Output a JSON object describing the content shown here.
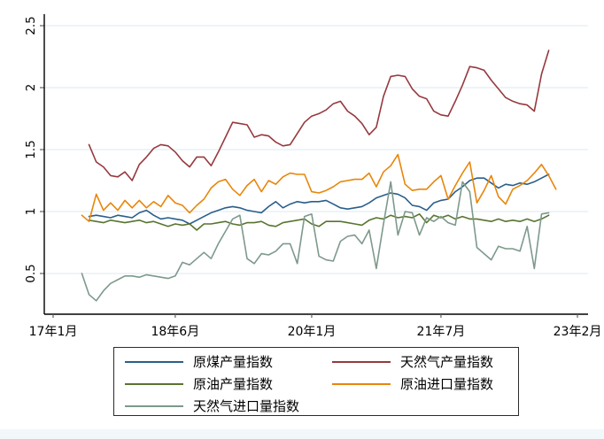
{
  "figure": {
    "title": "",
    "background": "#ffffff"
  },
  "colors": {
    "axis": "#000000",
    "tick": "#606060",
    "gridline": "#e4eef4",
    "text": "#000000",
    "legend_border": "#2b2b2b",
    "bottom_strip": "#f2f7fa"
  },
  "chart_data": {
    "type": "line",
    "title": "",
    "xlabel": "",
    "ylabel": "",
    "grid": "horizontal",
    "legend_position": "bottom",
    "x_axis": {
      "unit": "month",
      "tick_labels": [
        "17年1月",
        "18年6月",
        "20年1月",
        "21年7月",
        "23年2月"
      ],
      "tick_months": [
        0,
        17,
        36,
        54,
        73
      ],
      "total_months": 73
    },
    "y_axis": {
      "tick_values": [
        0.5,
        1,
        1.5,
        2,
        2.5
      ],
      "tick_labels": [
        "0.5",
        "1",
        "1.5",
        "2",
        "2.5"
      ],
      "range": [
        0.25,
        2.62
      ]
    },
    "series": [
      {
        "name": "原煤产量指数",
        "key": "raw-coal-production-index",
        "color": "#2a5e8b",
        "start_month": 5,
        "values": [
          0.96,
          0.97,
          0.96,
          0.95,
          0.97,
          0.96,
          0.95,
          0.99,
          1.01,
          0.97,
          0.94,
          0.95,
          0.94,
          0.93,
          0.9,
          0.93,
          0.96,
          0.99,
          1.01,
          1.03,
          1.04,
          1.03,
          1.01,
          1.0,
          0.99,
          1.04,
          1.08,
          1.03,
          1.06,
          1.08,
          1.07,
          1.08,
          1.08,
          1.09,
          1.06,
          1.03,
          1.02,
          1.03,
          1.04,
          1.07,
          1.11,
          1.13,
          1.15,
          1.14,
          1.11,
          1.05,
          1.04,
          1.01,
          1.07,
          1.09,
          1.1,
          1.16,
          1.2,
          1.25,
          1.27,
          1.27,
          1.23,
          1.19,
          1.22,
          1.21,
          1.23,
          1.22,
          1.24,
          1.27,
          1.3
        ]
      },
      {
        "name": "天然气产量指数",
        "key": "natural-gas-production-index",
        "color": "#96393e",
        "start_month": 5,
        "values": [
          1.54,
          1.4,
          1.36,
          1.29,
          1.28,
          1.32,
          1.25,
          1.38,
          1.44,
          1.51,
          1.54,
          1.53,
          1.48,
          1.41,
          1.36,
          1.44,
          1.44,
          1.37,
          1.48,
          1.6,
          1.72,
          1.71,
          1.7,
          1.6,
          1.62,
          1.61,
          1.56,
          1.53,
          1.54,
          1.63,
          1.72,
          1.77,
          1.79,
          1.82,
          1.87,
          1.89,
          1.81,
          1.77,
          1.71,
          1.62,
          1.68,
          1.93,
          2.09,
          2.1,
          2.09,
          1.99,
          1.93,
          1.91,
          1.81,
          1.78,
          1.77,
          1.89,
          2.02,
          2.17,
          2.16,
          2.14,
          2.06,
          1.99,
          1.92,
          1.89,
          1.87,
          1.86,
          1.81,
          2.11,
          2.3
        ]
      },
      {
        "name": "原油产量指数",
        "key": "crude-oil-production-index",
        "color": "#587430",
        "start_month": 5,
        "values": [
          0.93,
          0.92,
          0.91,
          0.93,
          0.92,
          0.91,
          0.92,
          0.93,
          0.91,
          0.92,
          0.9,
          0.88,
          0.9,
          0.89,
          0.9,
          0.85,
          0.9,
          0.9,
          0.91,
          0.92,
          0.9,
          0.89,
          0.91,
          0.91,
          0.92,
          0.89,
          0.88,
          0.91,
          0.92,
          0.93,
          0.94,
          0.9,
          0.88,
          0.92,
          0.92,
          0.92,
          0.91,
          0.9,
          0.89,
          0.93,
          0.95,
          0.94,
          0.97,
          0.95,
          0.96,
          0.95,
          0.98,
          0.91,
          0.97,
          0.95,
          0.97,
          0.94,
          0.96,
          0.94,
          0.94,
          0.93,
          0.92,
          0.94,
          0.92,
          0.93,
          0.92,
          0.94,
          0.92,
          0.94,
          0.97
        ]
      },
      {
        "name": "原油进口量指数",
        "key": "crude-oil-import-index",
        "color": "#e8860a",
        "start_month": 4,
        "values": [
          0.97,
          0.92,
          1.14,
          1.01,
          1.07,
          1.01,
          1.09,
          1.03,
          1.09,
          1.03,
          1.08,
          1.04,
          1.13,
          1.07,
          1.05,
          0.99,
          1.05,
          1.1,
          1.19,
          1.24,
          1.26,
          1.18,
          1.13,
          1.21,
          1.26,
          1.16,
          1.25,
          1.22,
          1.28,
          1.31,
          1.3,
          1.3,
          1.16,
          1.15,
          1.17,
          1.2,
          1.24,
          1.25,
          1.26,
          1.26,
          1.31,
          1.2,
          1.32,
          1.37,
          1.46,
          1.22,
          1.17,
          1.18,
          1.18,
          1.24,
          1.29,
          1.1,
          1.21,
          1.31,
          1.4,
          1.07,
          1.17,
          1.29,
          1.12,
          1.06,
          1.18,
          1.21,
          1.25,
          1.31,
          1.38,
          1.29,
          1.18
        ]
      },
      {
        "name": "天然气进口量指数",
        "key": "natural-gas-import-index",
        "color": "#7d998c",
        "start_month": 4,
        "values": [
          0.5,
          0.33,
          0.28,
          0.36,
          0.42,
          0.45,
          0.48,
          0.48,
          0.47,
          0.49,
          0.48,
          0.47,
          0.46,
          0.48,
          0.59,
          0.57,
          0.62,
          0.67,
          0.62,
          0.74,
          0.84,
          0.94,
          0.97,
          0.62,
          0.58,
          0.66,
          0.65,
          0.68,
          0.74,
          0.74,
          0.58,
          0.96,
          0.98,
          0.64,
          0.61,
          0.6,
          0.76,
          0.8,
          0.81,
          0.74,
          0.85,
          0.54,
          0.9,
          1.24,
          0.81,
          1.0,
          0.99,
          0.81,
          0.95,
          0.92,
          0.96,
          0.91,
          0.89,
          1.24,
          1.16,
          0.71,
          0.66,
          0.61,
          0.72,
          0.7,
          0.7,
          0.68,
          0.88,
          0.54,
          0.98,
          0.99
        ]
      }
    ],
    "legend": {
      "columns": [
        [
          "原煤产量指数",
          "原油产量指数",
          "天然气进口量指数"
        ],
        [
          "天然气产量指数",
          "原油进口量指数"
        ]
      ]
    }
  }
}
